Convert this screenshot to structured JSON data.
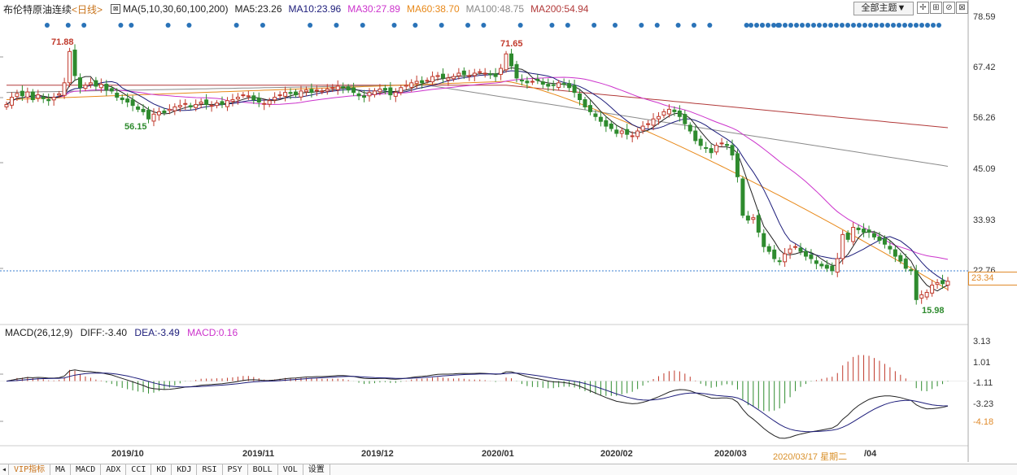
{
  "header": {
    "symbol": "布伦特原油连续",
    "period": "<日线>",
    "ma_label": "MA(5,10,30,60,100,200)",
    "ma5": "MA5:23.26",
    "ma10": "MA10:23.96",
    "ma30": "MA30:27.89",
    "ma60": "MA60:38.70",
    "ma100": "MA100:48.75",
    "ma200": "MA200:54.94",
    "theme_button": "全部主题▼",
    "colors": {
      "ma5": "#222222",
      "ma10": "#1c1c7a",
      "ma30": "#cc33cc",
      "ma60": "#e8891a",
      "ma100": "#8a8a8a",
      "ma200": "#b23a3a"
    }
  },
  "price_axis": [
    "78.59",
    "67.42",
    "56.26",
    "45.09",
    "33.93",
    "22.76"
  ],
  "last_price": "23.34",
  "annotations": {
    "high1": "71.88",
    "high2": "71.65",
    "low1": "56.15",
    "low2": "15.98"
  },
  "macd": {
    "label": "MACD(26,12,9)",
    "diff": "DIFF:-3.40",
    "dea": "DEA:-3.49",
    "macd": "MACD:0.16",
    "axis": [
      "3.13",
      "1.01",
      "-1.11",
      "-3.23",
      "-4.18"
    ]
  },
  "x_axis": [
    "2019/10",
    "2019/11",
    "2019/12",
    "2020/01",
    "2020/02",
    "2020/03",
    "/04"
  ],
  "crosshair_date": "2020/03/17 星期二",
  "tabs": [
    "VIP指标",
    "MA",
    "MACD",
    "ADX",
    "CCI",
    "KD",
    "KDJ",
    "RSI",
    "PSY",
    "BOLL",
    "VOL",
    "设置"
  ],
  "chart_data": {
    "type": "candlestick",
    "ylim": [
      15,
      80
    ],
    "closes": [
      60.0,
      61.5,
      62.3,
      61.8,
      62.6,
      61.0,
      62.0,
      61.2,
      60.8,
      61.5,
      62.2,
      64.5,
      71.0,
      66.0,
      63.5,
      64.0,
      64.5,
      63.8,
      64.2,
      63.0,
      62.8,
      61.5,
      61.0,
      60.5,
      59.8,
      59.0,
      58.5,
      57.0,
      58.0,
      58.5,
      58.3,
      59.0,
      59.5,
      59.8,
      60.2,
      59.5,
      60.0,
      60.5,
      60.0,
      59.8,
      60.3,
      60.0,
      60.8,
      61.0,
      61.5,
      62.0,
      61.8,
      61.0,
      60.5,
      60.2,
      60.8,
      61.5,
      62.0,
      62.5,
      62.3,
      62.0,
      62.8,
      63.0,
      62.5,
      63.0,
      62.8,
      63.2,
      63.5,
      63.8,
      63.5,
      63.0,
      62.5,
      61.8,
      61.5,
      62.5,
      62.8,
      63.2,
      63.0,
      62.0,
      62.5,
      63.5,
      64.0,
      64.5,
      64.8,
      64.5,
      65.0,
      65.8,
      66.0,
      65.5,
      65.5,
      65.8,
      66.5,
      66.2,
      66.0,
      66.5,
      66.8,
      66.5,
      66.2,
      65.8,
      67.5,
      70.5,
      68.0,
      65.5,
      65.0,
      64.5,
      64.8,
      65.0,
      64.2,
      63.8,
      64.0,
      64.5,
      64.2,
      63.5,
      62.5,
      61.0,
      59.5,
      58.5,
      57.5,
      56.5,
      55.5,
      55.0,
      54.0,
      54.5,
      53.8,
      53.5,
      54.5,
      55.5,
      56.0,
      57.0,
      57.5,
      58.5,
      59.0,
      58.5,
      57.5,
      56.0,
      54.5,
      52.5,
      51.5,
      51.0,
      50.0,
      51.5,
      52.0,
      51.5,
      49.5,
      45.0,
      37.0,
      36.0,
      36.5,
      33.5,
      30.5,
      29.5,
      28.0,
      27.5,
      29.0,
      30.0,
      30.5,
      29.5,
      28.5,
      28.0,
      27.0,
      26.5,
      26.0,
      25.5,
      28.0,
      33.0,
      32.0,
      34.5,
      34.0,
      33.5,
      33.5,
      32.5,
      31.8,
      31.0,
      30.0,
      28.5,
      27.5,
      26.0,
      25.5,
      19.5,
      20.5,
      21.0,
      22.5,
      23.0,
      22.8,
      23.3
    ]
  }
}
